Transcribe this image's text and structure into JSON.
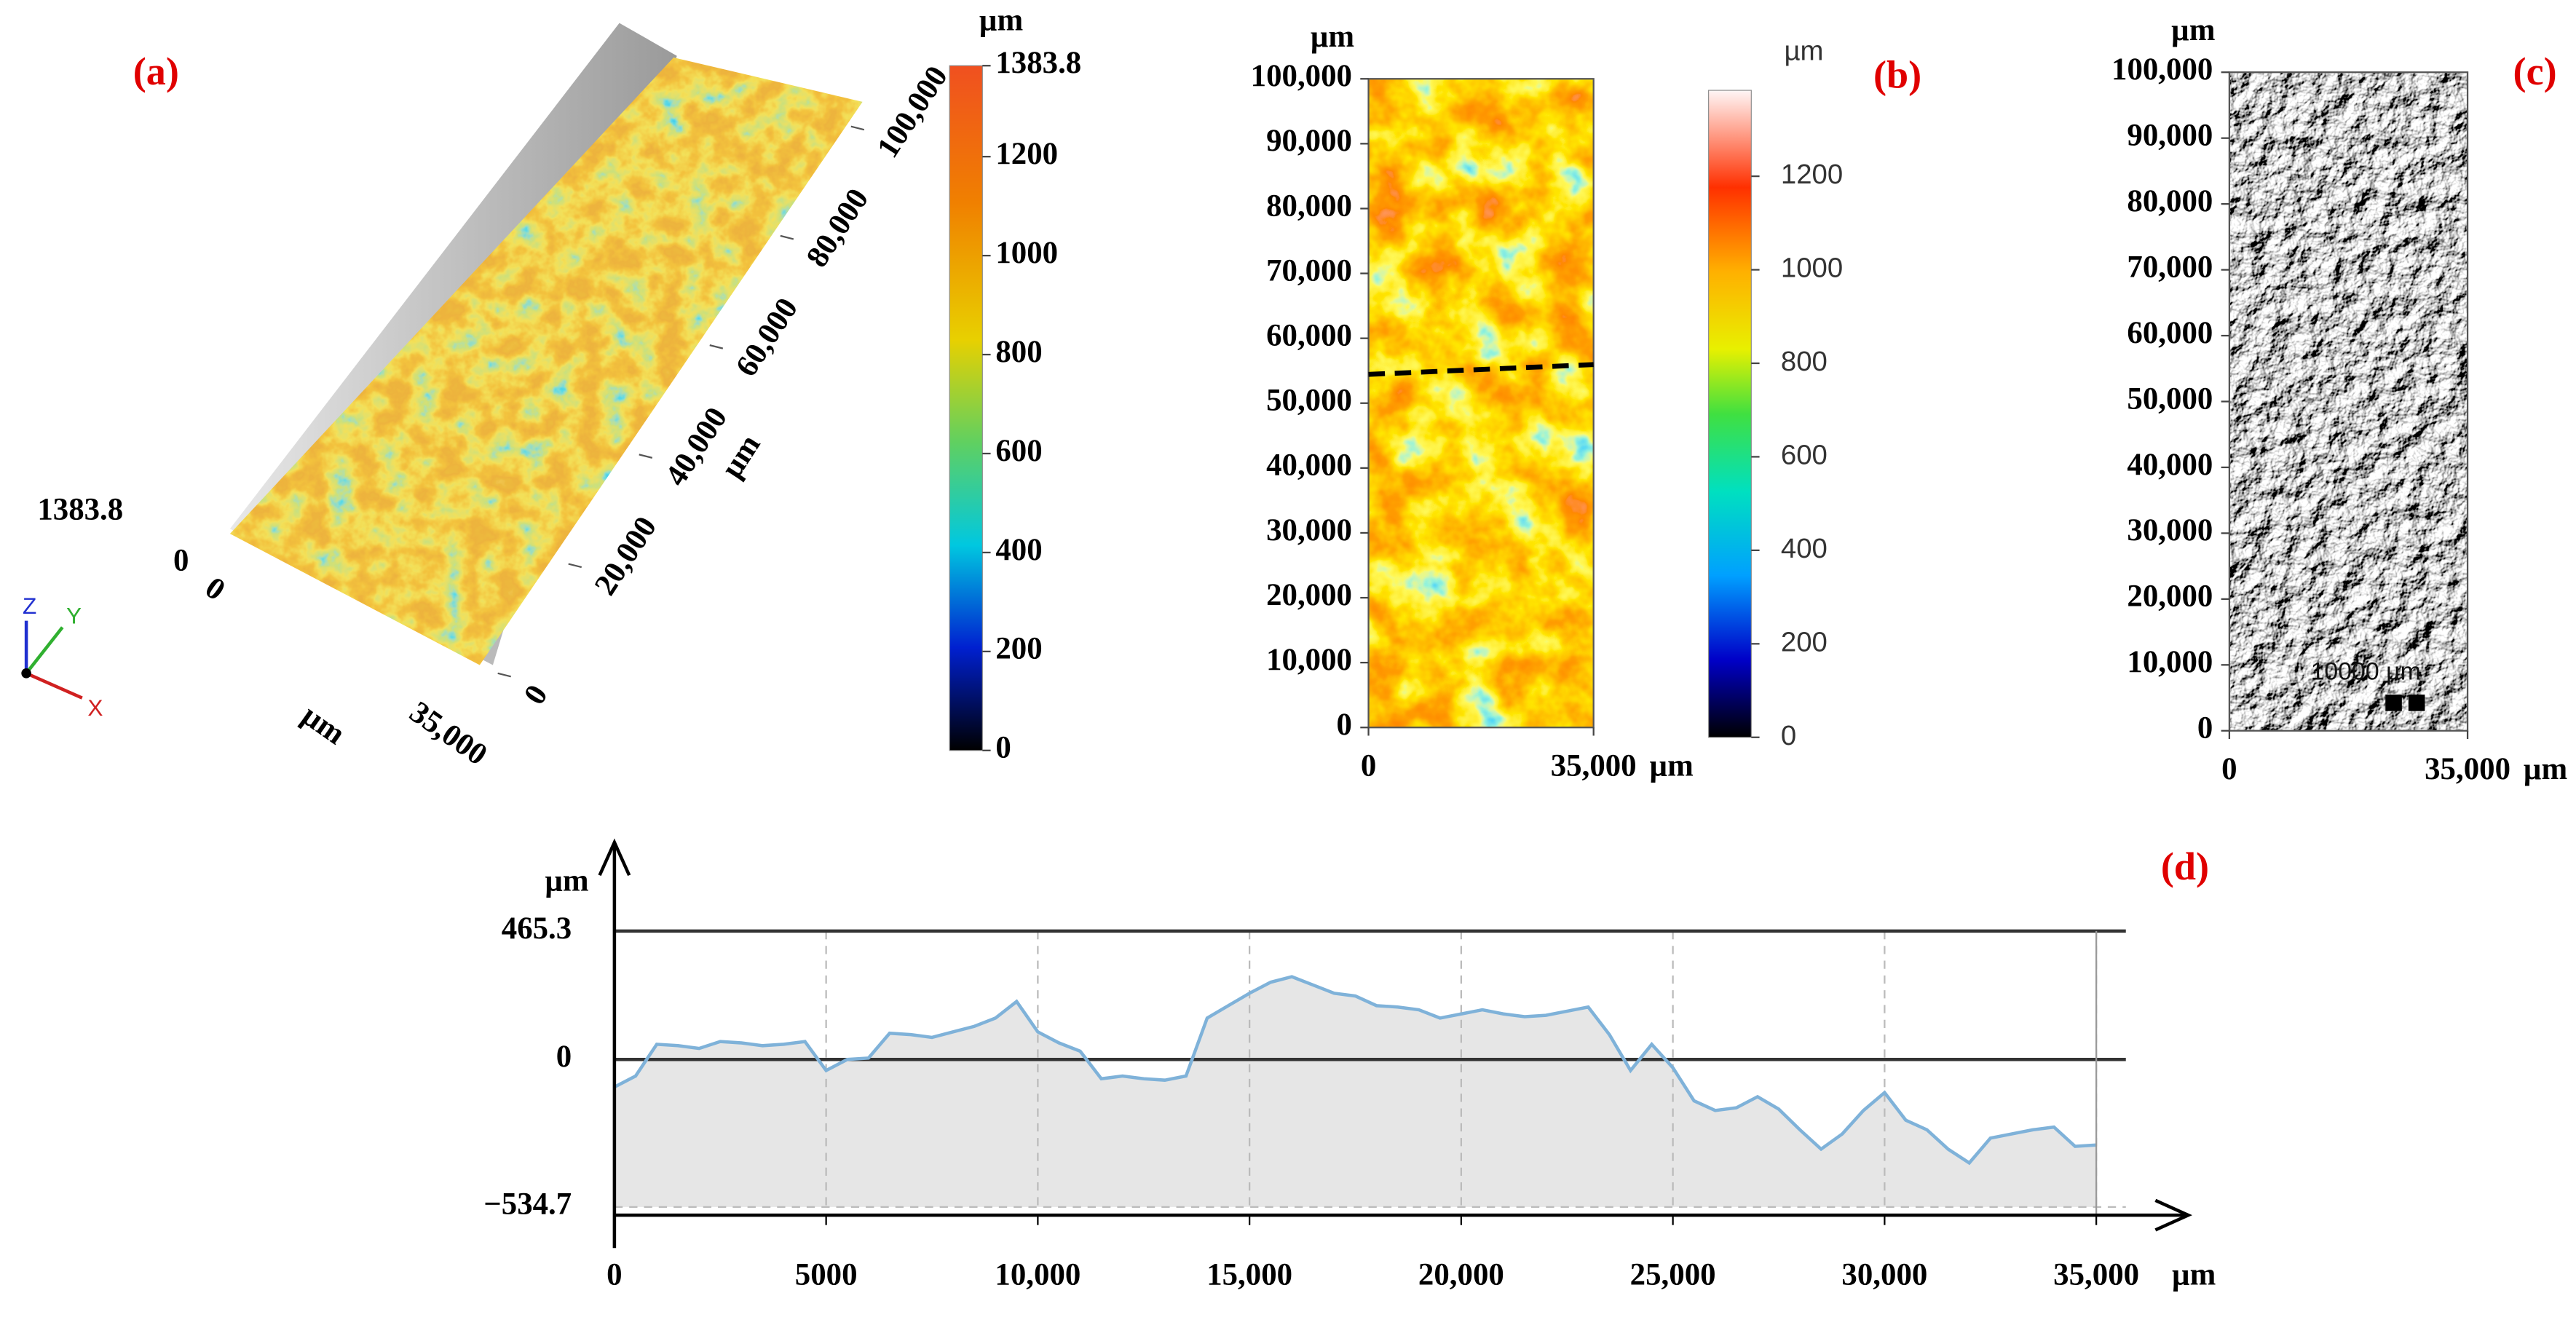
{
  "chart_data": [
    {
      "type": "surface3d",
      "label": "(a)",
      "z_ticks": [
        0,
        1383.8
      ],
      "y_ticks": [
        0,
        {
          "value": 20000,
          "label": "20,000"
        },
        {
          "value": 40000,
          "label": "40,000"
        },
        {
          "value": 60000,
          "label": "60,000"
        },
        {
          "value": 80000,
          "label": "80,000"
        },
        {
          "value": 100000,
          "label": "100,000"
        }
      ],
      "y_unit": "µm",
      "x_ticks": [
        0,
        {
          "value": 35000,
          "label": "35,000"
        }
      ],
      "x_unit": "µm",
      "axes": [
        "X",
        "Y",
        "Z"
      ],
      "colorbar": {
        "unit": "µm",
        "lim": [
          0,
          1383.8
        ],
        "ticks": [
          0,
          200,
          400,
          600,
          800,
          1000,
          1200,
          1383.8
        ]
      }
    },
    {
      "type": "heatmap",
      "label": "(b)",
      "xlim": [
        0,
        35000
      ],
      "ylim": [
        0,
        100000
      ],
      "xticks": [
        0,
        {
          "value": 35000,
          "label": "35,000"
        }
      ],
      "yticks": [
        0,
        {
          "value": 10000,
          "label": "10,000"
        },
        {
          "value": 20000,
          "label": "20,000"
        },
        {
          "value": 30000,
          "label": "30,000"
        },
        {
          "value": 40000,
          "label": "40,000"
        },
        {
          "value": 50000,
          "label": "50,000"
        },
        {
          "value": 60000,
          "label": "60,000"
        },
        {
          "value": 70000,
          "label": "70,000"
        },
        {
          "value": 80000,
          "label": "80,000"
        },
        {
          "value": 90000,
          "label": "90,000"
        },
        {
          "value": 100000,
          "label": "100,000"
        }
      ],
      "x_unit": "µm",
      "y_unit": "µm",
      "colorbar": {
        "unit": "µm",
        "lim": [
          0,
          1383.8
        ],
        "ticks": [
          0,
          200,
          400,
          600,
          800,
          1000,
          1200
        ]
      }
    },
    {
      "type": "image",
      "label": "(c)",
      "xlim": [
        0,
        35000
      ],
      "ylim": [
        0,
        100000
      ],
      "xticks": [
        0,
        {
          "value": 35000,
          "label": "35,000"
        }
      ],
      "yticks": [
        0,
        {
          "value": 10000,
          "label": "10,000"
        },
        {
          "value": 20000,
          "label": "20,000"
        },
        {
          "value": 30000,
          "label": "30,000"
        },
        {
          "value": 40000,
          "label": "40,000"
        },
        {
          "value": 50000,
          "label": "50,000"
        },
        {
          "value": 60000,
          "label": "60,000"
        },
        {
          "value": 70000,
          "label": "70,000"
        },
        {
          "value": 80000,
          "label": "80,000"
        },
        {
          "value": 90000,
          "label": "90,000"
        },
        {
          "value": 100000,
          "label": "100,000"
        }
      ],
      "x_unit": "µm",
      "y_unit": "µm",
      "scale_bar": "10000 µm"
    },
    {
      "type": "line",
      "label": "(d)",
      "x": [
        0,
        500,
        1000,
        1500,
        2000,
        2500,
        3000,
        3500,
        4000,
        4500,
        5000,
        5500,
        6000,
        6500,
        7000,
        7500,
        8000,
        8500,
        9000,
        9500,
        10000,
        10500,
        11000,
        11500,
        12000,
        12500,
        13000,
        13500,
        14000,
        14500,
        15000,
        15500,
        16000,
        16500,
        17000,
        17500,
        18000,
        18500,
        19000,
        19500,
        20000,
        20500,
        21000,
        21500,
        22000,
        22500,
        23000,
        23500,
        24000,
        24500,
        25000,
        25500,
        26000,
        26500,
        27000,
        27500,
        28000,
        28500,
        29000,
        29500,
        30000,
        30500,
        31000,
        31500,
        32000,
        32500,
        33000,
        33500,
        34000,
        34500,
        35000
      ],
      "values": [
        -100,
        -60,
        55,
        50,
        40,
        65,
        60,
        50,
        55,
        65,
        -40,
        0,
        5,
        95,
        90,
        80,
        100,
        120,
        150,
        210,
        100,
        60,
        30,
        -70,
        -60,
        -70,
        -75,
        -60,
        150,
        195,
        240,
        280,
        300,
        270,
        240,
        230,
        195,
        190,
        180,
        150,
        165,
        180,
        165,
        155,
        160,
        175,
        190,
        90,
        -40,
        55,
        -30,
        -150,
        -185,
        -175,
        -135,
        -180,
        -255,
        -325,
        -270,
        -185,
        -120,
        -220,
        -255,
        -325,
        -375,
        -285,
        -270,
        -255,
        -245,
        -315,
        -310
      ],
      "xlim": [
        0,
        35000
      ],
      "ylim": [
        -534.7,
        465.3
      ],
      "xticks": [
        0,
        5000,
        {
          "value": 10000,
          "label": "10,000"
        },
        {
          "value": 15000,
          "label": "15,000"
        },
        {
          "value": 20000,
          "label": "20,000"
        },
        {
          "value": 25000,
          "label": "25,000"
        },
        {
          "value": 30000,
          "label": "30,000"
        },
        {
          "value": 35000,
          "label": "35,000"
        }
      ],
      "yticks": [
        {
          "value": -534.7,
          "label": "−534.7"
        },
        0,
        465.3
      ],
      "x_unit": "µm",
      "y_unit": "µm",
      "color": "#7fb2d9",
      "grid": true
    }
  ]
}
